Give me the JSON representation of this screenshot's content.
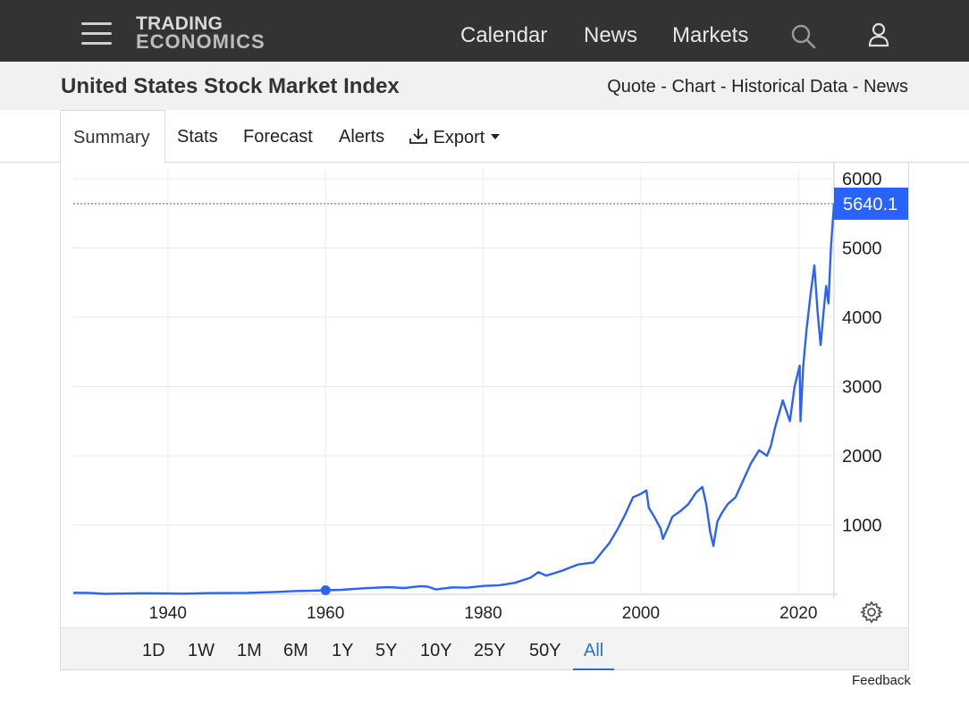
{
  "header": {
    "logo_line1": "TRADING",
    "logo_line2": "ECONOMICS",
    "nav": [
      "Calendar",
      "News",
      "Markets"
    ]
  },
  "title": {
    "text": "United States Stock Market Index",
    "links": [
      "Quote",
      "Chart",
      "Historical Data",
      "News"
    ],
    "separator": " - "
  },
  "tabs": {
    "summary": "Summary",
    "stats": "Stats",
    "forecast": "Forecast",
    "alerts": "Alerts",
    "export": "Export"
  },
  "ranges": [
    "1D",
    "1W",
    "1M",
    "6M",
    "1Y",
    "5Y",
    "10Y",
    "25Y",
    "50Y",
    "All"
  ],
  "active_range": "All",
  "feedback": "Feedback",
  "colors": {
    "line": "#2962ff",
    "accent": "#2f6bdf",
    "header": "#333333"
  },
  "chart_data": {
    "type": "line",
    "last_value_label": "5640.1",
    "ylim": [
      0,
      6000
    ],
    "xlim": [
      1928,
      2024.5
    ],
    "yticks": [
      1000,
      2000,
      3000,
      4000,
      5000,
      6000
    ],
    "xticks": [
      1940,
      1960,
      1980,
      2000,
      2020
    ],
    "grid": true,
    "marker_point": {
      "x": 1960,
      "y": 58
    },
    "series": [
      {
        "values": [
          [
            1928,
            22
          ],
          [
            1930,
            20
          ],
          [
            1932,
            7
          ],
          [
            1935,
            12
          ],
          [
            1937,
            16
          ],
          [
            1940,
            12
          ],
          [
            1942,
            9
          ],
          [
            1945,
            17
          ],
          [
            1950,
            20
          ],
          [
            1954,
            35
          ],
          [
            1956,
            46
          ],
          [
            1958,
            50
          ],
          [
            1960,
            58
          ],
          [
            1962,
            65
          ],
          [
            1965,
            88
          ],
          [
            1968,
            103
          ],
          [
            1970,
            90
          ],
          [
            1972,
            118
          ],
          [
            1973,
            110
          ],
          [
            1974,
            70
          ],
          [
            1976,
            100
          ],
          [
            1978,
            96
          ],
          [
            1980,
            120
          ],
          [
            1982,
            130
          ],
          [
            1984,
            165
          ],
          [
            1986,
            240
          ],
          [
            1987,
            320
          ],
          [
            1988,
            270
          ],
          [
            1990,
            340
          ],
          [
            1992,
            430
          ],
          [
            1994,
            460
          ],
          [
            1995,
            600
          ],
          [
            1996,
            740
          ],
          [
            1997,
            930
          ],
          [
            1998,
            1150
          ],
          [
            1999,
            1400
          ],
          [
            2000,
            1450
          ],
          [
            2000.7,
            1500
          ],
          [
            2001,
            1250
          ],
          [
            2001.8,
            1100
          ],
          [
            2002.5,
            950
          ],
          [
            2002.8,
            800
          ],
          [
            2003.5,
            980
          ],
          [
            2004,
            1120
          ],
          [
            2005,
            1200
          ],
          [
            2006,
            1300
          ],
          [
            2007,
            1470
          ],
          [
            2007.8,
            1550
          ],
          [
            2008.3,
            1300
          ],
          [
            2008.8,
            900
          ],
          [
            2009.2,
            700
          ],
          [
            2009.7,
            1050
          ],
          [
            2010.3,
            1180
          ],
          [
            2011,
            1300
          ],
          [
            2012,
            1400
          ],
          [
            2013,
            1650
          ],
          [
            2014,
            1900
          ],
          [
            2015,
            2080
          ],
          [
            2016,
            2000
          ],
          [
            2016.5,
            2150
          ],
          [
            2017,
            2400
          ],
          [
            2018,
            2800
          ],
          [
            2018.9,
            2500
          ],
          [
            2019.5,
            3000
          ],
          [
            2020.15,
            3300
          ],
          [
            2020.25,
            2500
          ],
          [
            2020.6,
            3300
          ],
          [
            2021,
            3800
          ],
          [
            2021.5,
            4300
          ],
          [
            2022,
            4750
          ],
          [
            2022.4,
            4100
          ],
          [
            2022.8,
            3600
          ],
          [
            2023.2,
            4100
          ],
          [
            2023.5,
            4450
          ],
          [
            2023.8,
            4200
          ],
          [
            2024.1,
            5000
          ],
          [
            2024.5,
            5640.1
          ]
        ]
      }
    ]
  }
}
